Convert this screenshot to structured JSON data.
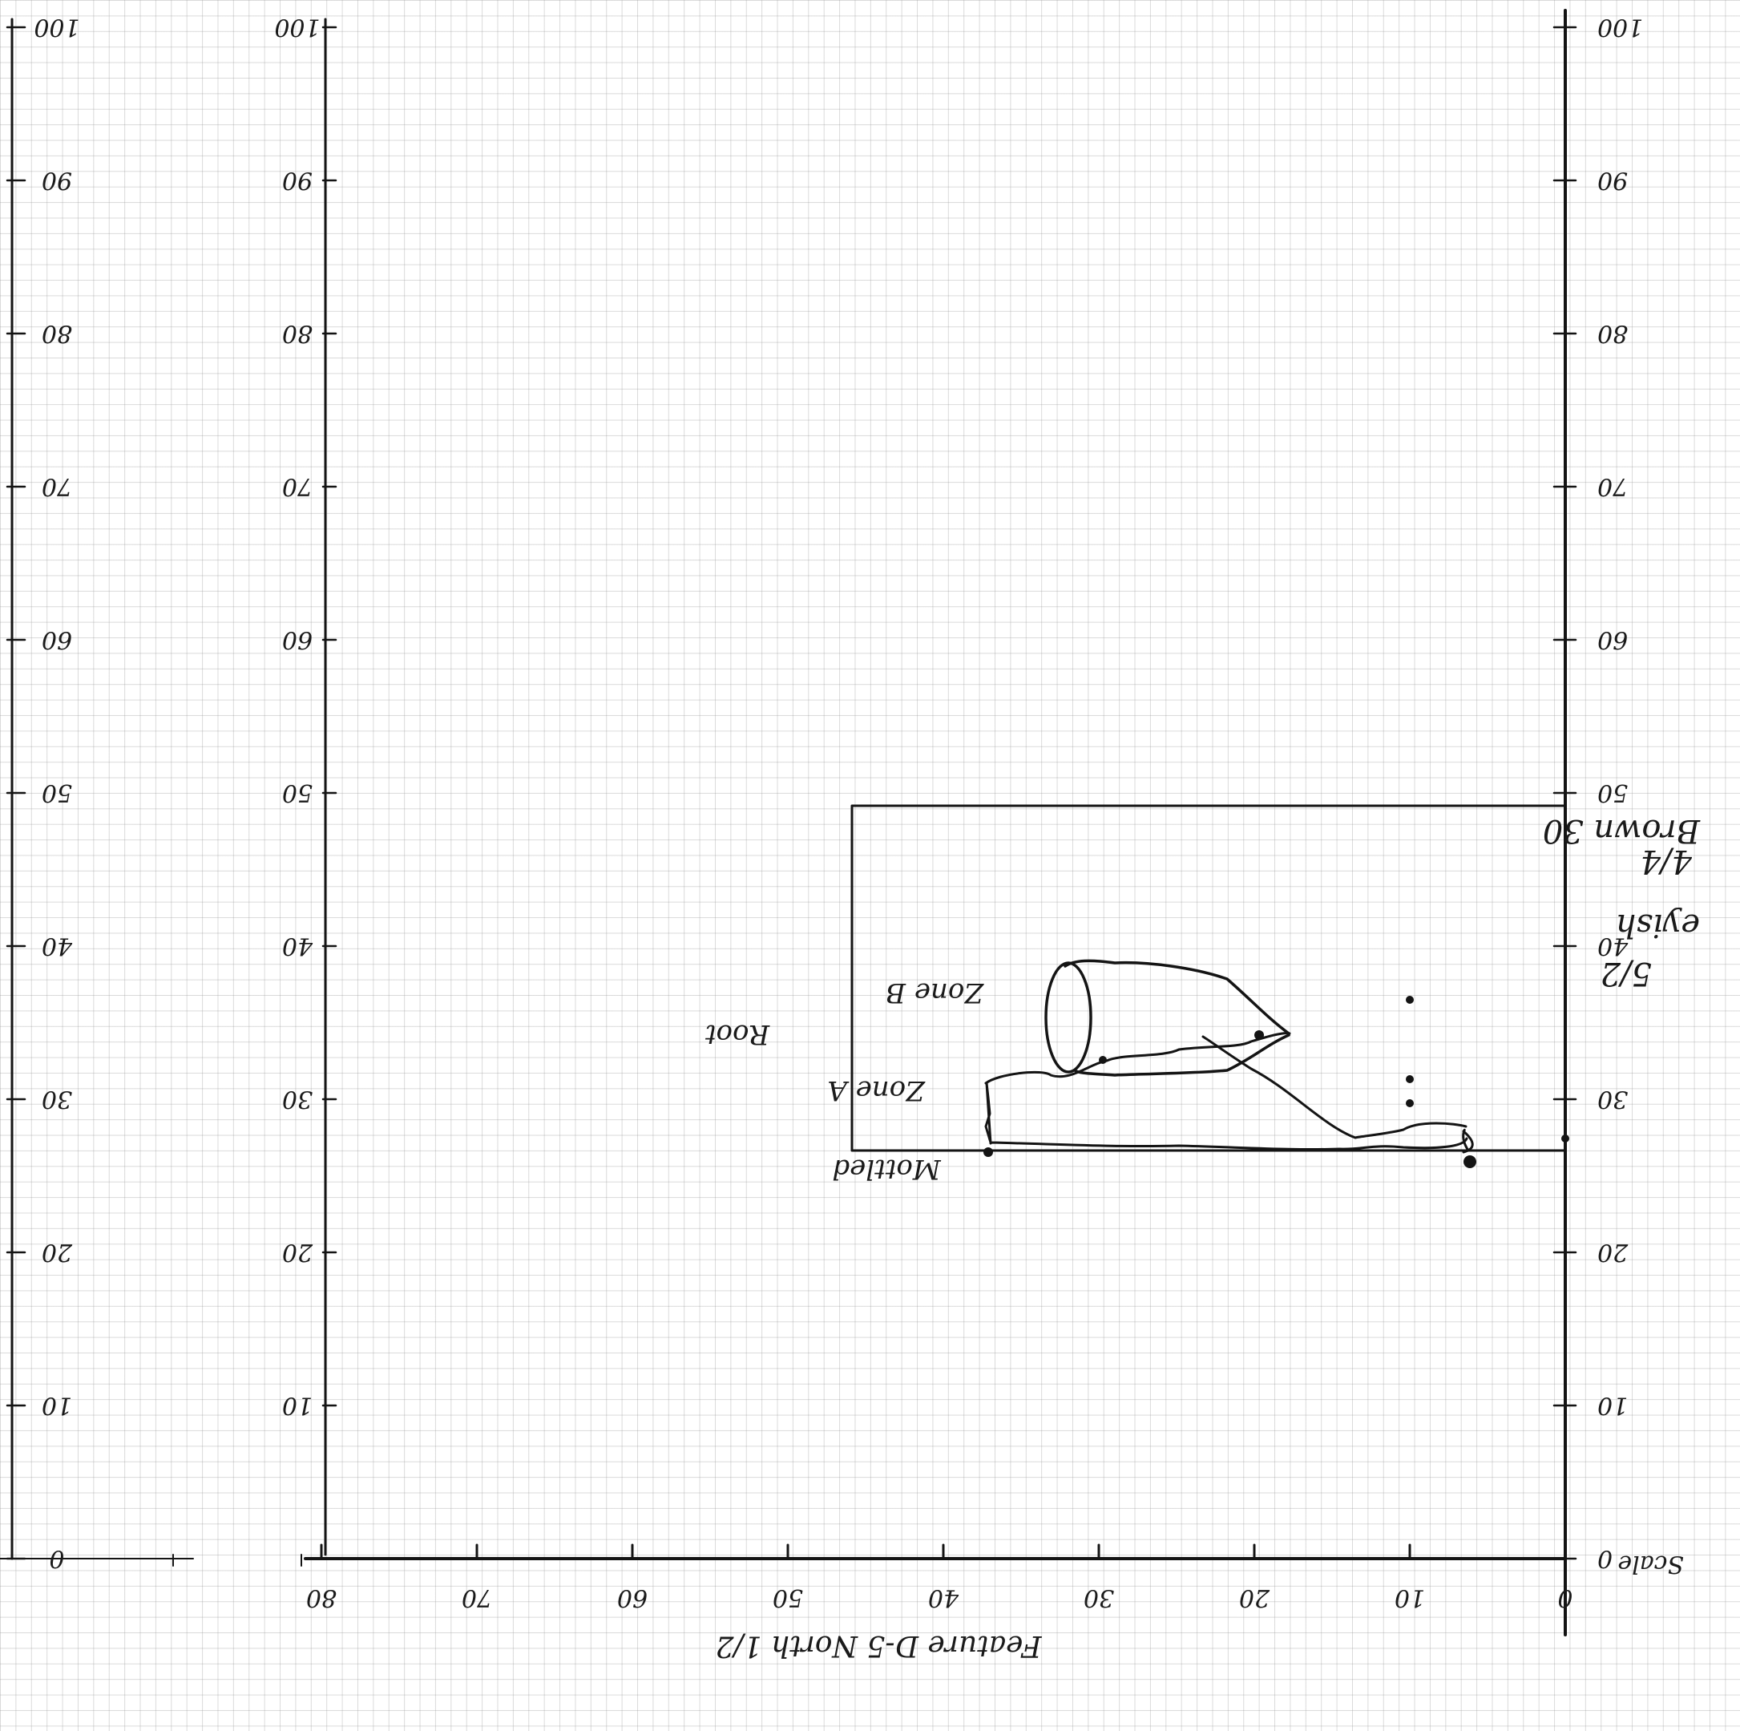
{
  "sheet": {
    "caption": "Feature D-5 North 1/2",
    "margin_notes": [
      "Brown 30",
      "4/4",
      "eyish",
      "5/2"
    ],
    "side_label": "Scale"
  },
  "axes": {
    "x_ticks": [
      "0",
      "10",
      "20",
      "30",
      "40",
      "50",
      "60",
      "70",
      "80"
    ],
    "y_ticks_right": [
      "0",
      "10",
      "20",
      "30",
      "40",
      "50",
      "60",
      "70",
      "80",
      "90",
      "100"
    ],
    "y_ticks_middle": [
      "10",
      "20",
      "30",
      "40",
      "50",
      "60",
      "70",
      "80",
      "90",
      "100"
    ],
    "y_ticks_left": [
      "0",
      "10",
      "20",
      "30",
      "40",
      "50",
      "60",
      "70",
      "80",
      "90",
      "100"
    ]
  },
  "drawing": {
    "zone_a": "Zone A",
    "zone_b": "Zone B",
    "root": "Root",
    "mottled": "Mottled"
  },
  "colors": {
    "ink": "#141414",
    "grid": "#969696",
    "paper": "#ffffff"
  }
}
